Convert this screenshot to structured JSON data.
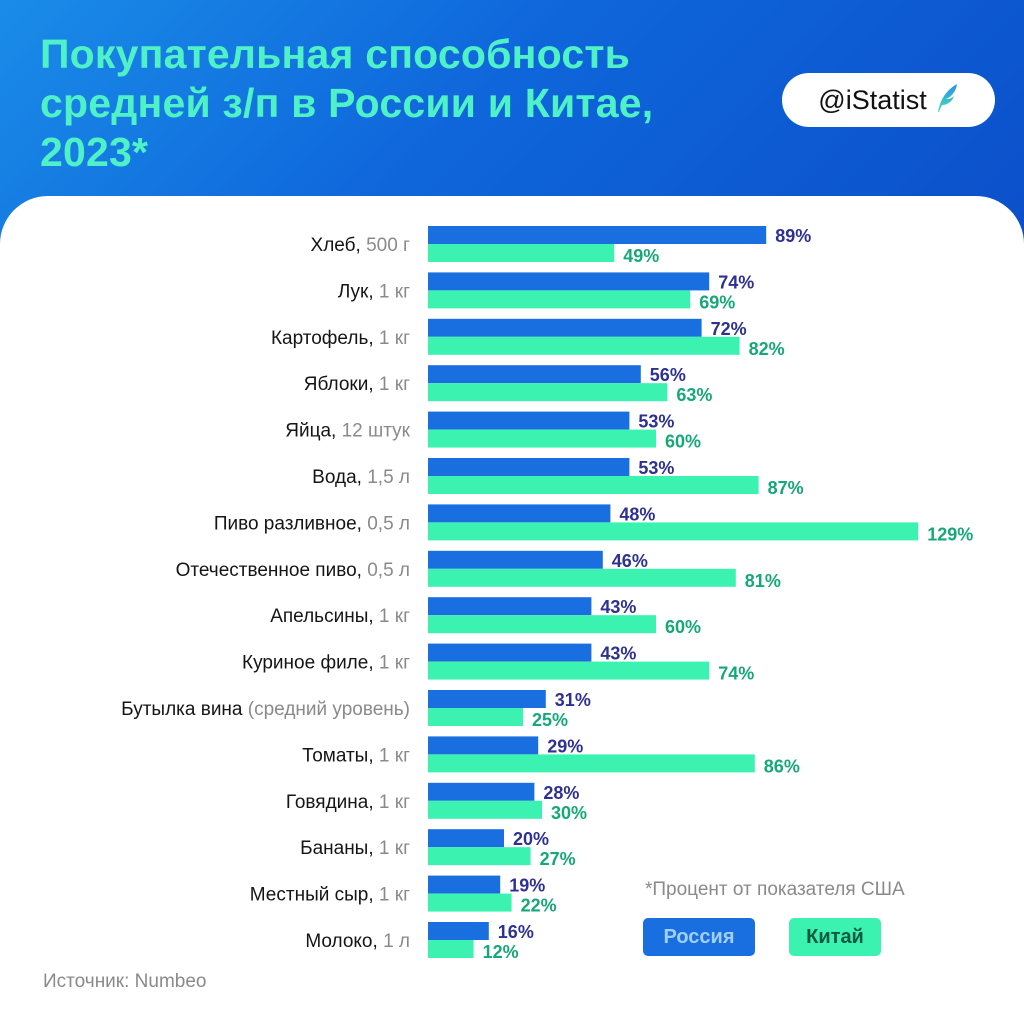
{
  "title_lines": [
    "Покупательная способность",
    "средней з/п в России и Китае,",
    "2023*"
  ],
  "badge": {
    "text": "@iStatist",
    "icon": "feather-logo-icon"
  },
  "footnote": "*Процент от показателя США",
  "legend": {
    "russia": "Россия",
    "china": "Китай"
  },
  "source": "Источник: Numbeo",
  "colors": {
    "russia_bar": "#1a6fe0",
    "china_bar": "#3cf2b1",
    "russia_text": "#2e3192",
    "china_text": "#16a876",
    "title": "#4ff2c6",
    "header": "#0f63d6"
  },
  "chart_data": {
    "type": "bar",
    "orientation": "horizontal",
    "unit": "%",
    "categories": [
      {
        "name": "Хлеб",
        "unit": "500 г"
      },
      {
        "name": "Лук",
        "unit": "1 кг"
      },
      {
        "name": "Картофель",
        "unit": "1 кг"
      },
      {
        "name": "Яблоки",
        "unit": "1 кг"
      },
      {
        "name": "Яйца",
        "unit": "12 штук"
      },
      {
        "name": "Вода",
        "unit": "1,5 л"
      },
      {
        "name": "Пиво разливное",
        "unit": "0,5 л"
      },
      {
        "name": "Отечественное пиво",
        "unit": "0,5 л"
      },
      {
        "name": "Апельсины",
        "unit": "1 кг"
      },
      {
        "name": "Куриное филе",
        "unit": "1 кг"
      },
      {
        "name": "Бутылка вина",
        "unit": "(средний уровень)",
        "sep": " "
      },
      {
        "name": "Томаты",
        "unit": "1 кг"
      },
      {
        "name": "Говядина",
        "unit": "1 кг"
      },
      {
        "name": "Бананы",
        "unit": "1 кг"
      },
      {
        "name": "Местный сыр",
        "unit": "1 кг"
      },
      {
        "name": "Молоко",
        "unit": "1 л"
      }
    ],
    "series": [
      {
        "name": "Россия",
        "values": [
          89,
          74,
          72,
          56,
          53,
          53,
          48,
          46,
          43,
          43,
          31,
          29,
          28,
          20,
          19,
          16
        ]
      },
      {
        "name": "Китай",
        "values": [
          49,
          69,
          82,
          63,
          60,
          87,
          129,
          81,
          60,
          74,
          25,
          86,
          30,
          27,
          22,
          12
        ]
      }
    ],
    "xlim": [
      0,
      129
    ]
  }
}
